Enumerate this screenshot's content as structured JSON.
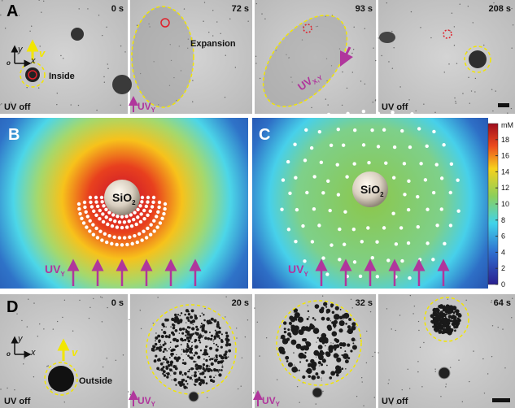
{
  "panels": [
    {
      "label": "A"
    },
    {
      "label": "B"
    },
    {
      "label": "C"
    },
    {
      "label": "D"
    }
  ],
  "row_a": {
    "times": [
      "0 s",
      "72 s",
      "93 s",
      "208 s"
    ],
    "inside": "Inside",
    "expansion": "Expansion",
    "uv_off": "UV off",
    "velocity": "v",
    "axis_x": "x",
    "axis_y": "y",
    "axis_origin": "o"
  },
  "uv": {
    "text": "UV",
    "sub_y": "Y",
    "sub_xy": "X,Y"
  },
  "particle": {
    "text": "SiO",
    "sub": "2"
  },
  "colorbar": {
    "unit": "mM",
    "ticks": [
      0,
      2,
      4,
      6,
      8,
      10,
      12,
      14,
      16,
      18
    ]
  },
  "row_d": {
    "times": [
      "0 s",
      "20 s",
      "32 s",
      "64 s"
    ],
    "outside": "Outside",
    "uv_off": "UV off",
    "velocity": "v",
    "axis_x": "x",
    "axis_y": "y",
    "axis_origin": "o"
  }
}
